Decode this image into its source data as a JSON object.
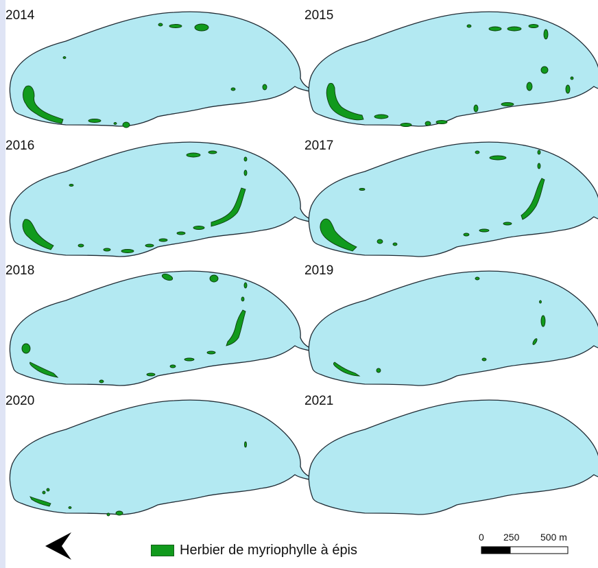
{
  "panels": [
    {
      "year": "2014"
    },
    {
      "year": "2015"
    },
    {
      "year": "2016"
    },
    {
      "year": "2017"
    },
    {
      "year": "2018"
    },
    {
      "year": "2019"
    },
    {
      "year": "2020"
    },
    {
      "year": "2021"
    }
  ],
  "legend": {
    "label": "Herbier de myriophylle à épis",
    "color": "#119a1d"
  },
  "scale_bar": {
    "labels": [
      "0",
      "250",
      "500 m"
    ]
  },
  "north_arrow": {
    "icon": "north-arrow-icon"
  },
  "colors": {
    "water": "#b3e9f2",
    "shoreline": "#1f2a33",
    "vegetation": "#119a1d",
    "vegetation_outline": "#0c3d0e",
    "page_border": "#dfe4f5"
  }
}
